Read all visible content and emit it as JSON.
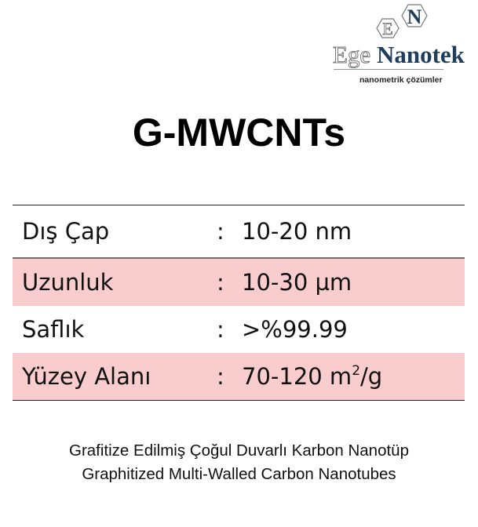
{
  "logo": {
    "letters": [
      "E",
      "N"
    ],
    "brand_part1": "Ege",
    "brand_part2": "Nanotek",
    "tagline": "nanometrik çözümler"
  },
  "title": "G-MWCNTs",
  "specs": [
    {
      "label": "Dış Çap",
      "colon": ":",
      "value": "10-20 nm",
      "sup": "",
      "suffix": ""
    },
    {
      "label": "Uzunluk",
      "colon": ":",
      "value": "10-30 µm",
      "sup": "",
      "suffix": ""
    },
    {
      "label": "Saflık",
      "colon": ":",
      "value": ">%99.99",
      "sup": "",
      "suffix": ""
    },
    {
      "label": "Yüzey Alanı",
      "colon": ":",
      "value": "70-120 m",
      "sup": "2",
      "suffix": "/g"
    }
  ],
  "description_tr": "Grafitize Edilmiş Çoğul Duvarlı Karbon Nanotüp",
  "description_en": "Graphitized Multi-Walled Carbon Nanotubes",
  "colors": {
    "row_highlight": "#f9cdcd",
    "brand_blue": "#1f3d5c"
  }
}
